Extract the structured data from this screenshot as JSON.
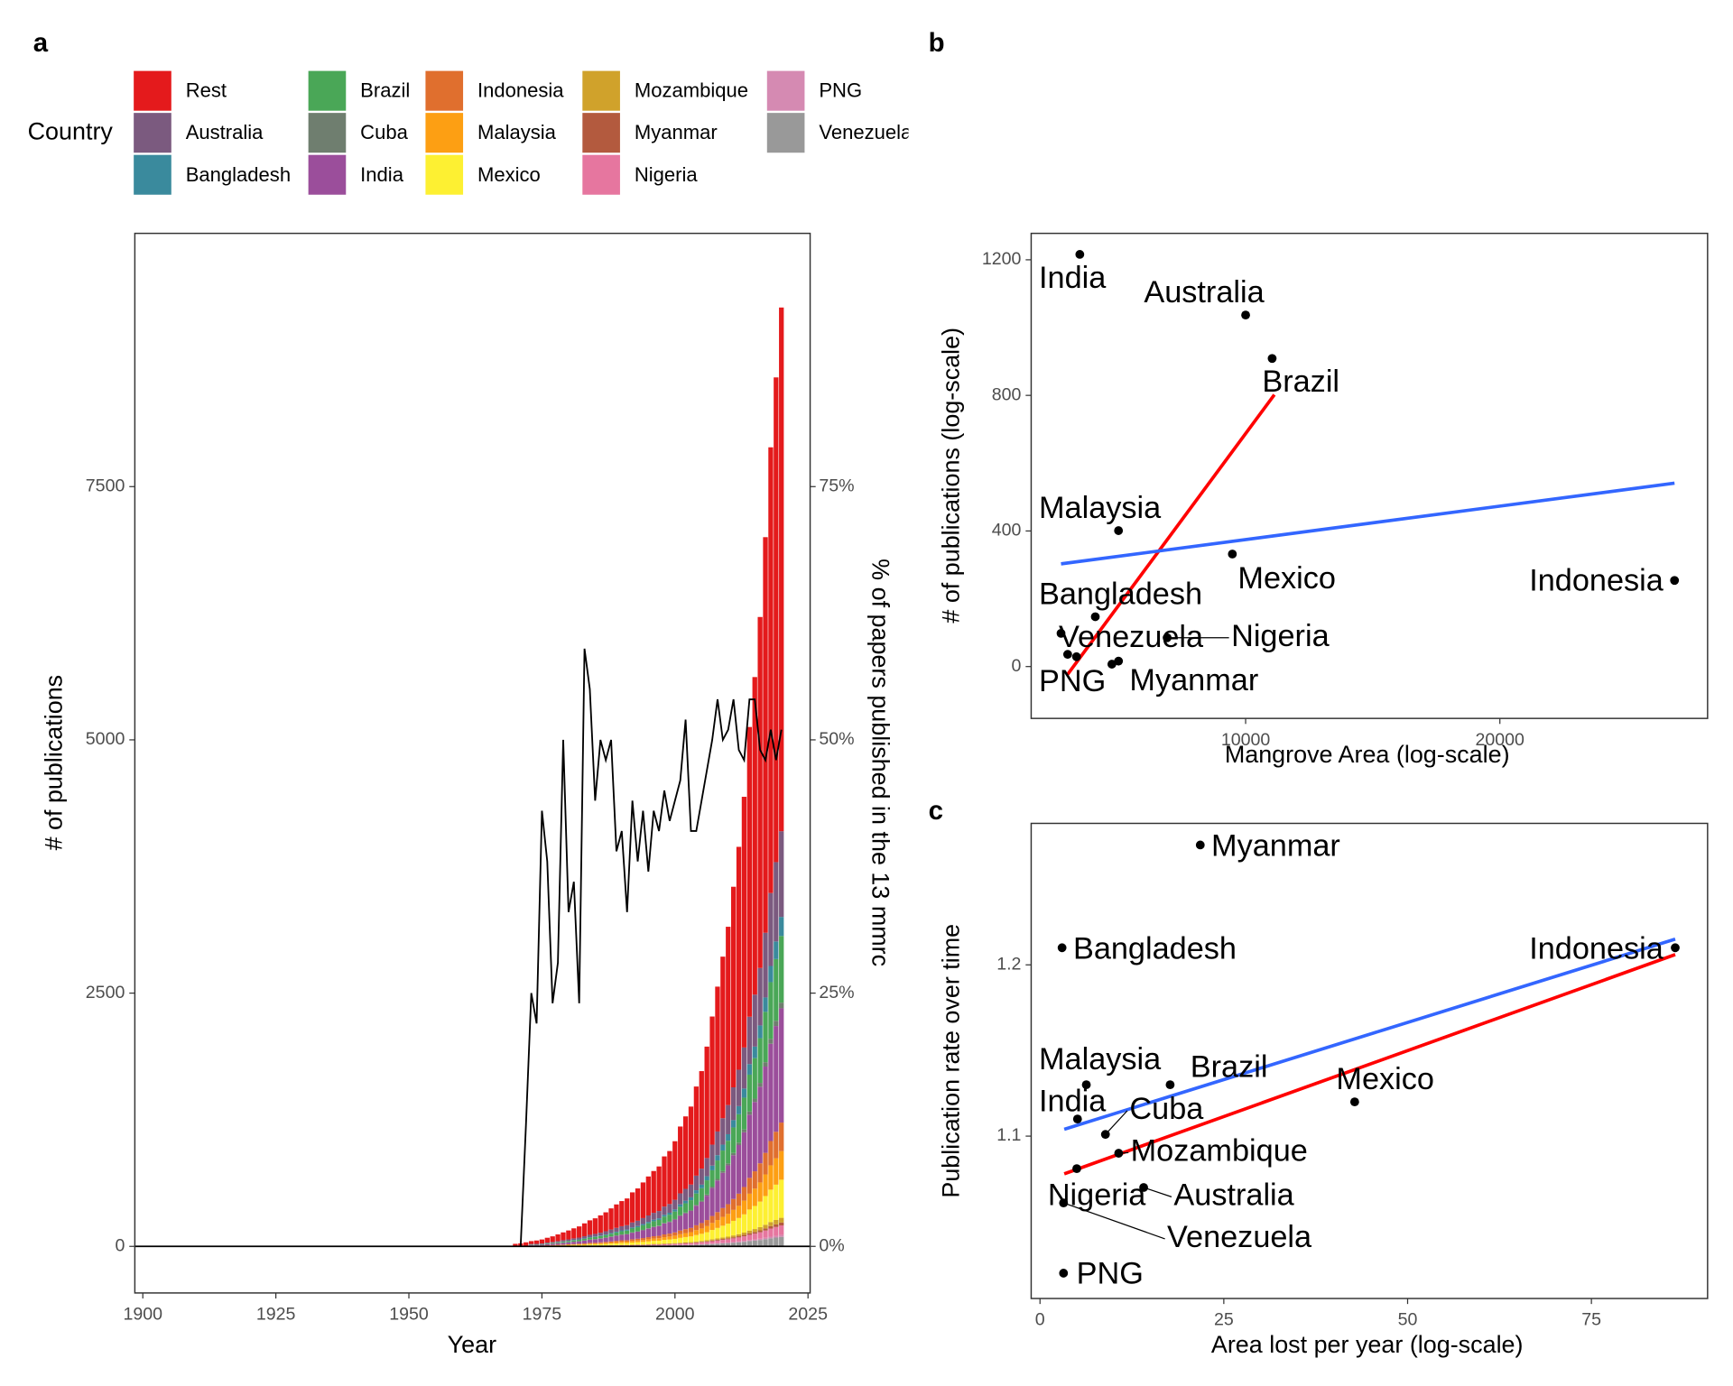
{
  "chart_data": [
    {
      "type": "bar",
      "panel": "a",
      "stacked": true,
      "legend_title": "Country",
      "x_label": "Year",
      "y_label": "# of publications",
      "y2_label": "% of papers published in the 13 mmrc",
      "xlim": [
        1898.5,
        2025.4
      ],
      "xticks": [
        1900,
        1925,
        1950,
        1975,
        2000,
        2025
      ],
      "ylim": [
        -460,
        10000
      ],
      "yticks": [
        0,
        2500,
        5000,
        7500
      ],
      "y2lim": [
        -4.6,
        100
      ],
      "y2ticks": [
        {
          "value": 0,
          "label": "0%"
        },
        {
          "value": 25,
          "label": "25%"
        },
        {
          "value": 50,
          "label": "50%"
        },
        {
          "value": 75,
          "label": "75%"
        }
      ],
      "hline": 0,
      "x": [
        1970,
        1971,
        1972,
        1973,
        1974,
        1975,
        1976,
        1977,
        1978,
        1979,
        1980,
        1981,
        1982,
        1983,
        1984,
        1985,
        1986,
        1987,
        1988,
        1989,
        1990,
        1991,
        1992,
        1993,
        1994,
        1995,
        1996,
        1997,
        1998,
        1999,
        2000,
        2001,
        2002,
        2003,
        2004,
        2005,
        2006,
        2007,
        2008,
        2009,
        2010,
        2011,
        2012,
        2013,
        2014,
        2015,
        2016,
        2017,
        2018,
        2019,
        2020
      ],
      "series": [
        {
          "name": "Rest",
          "color": "#e41a1c",
          "values": [
            25,
            30,
            40,
            28,
            33,
            39,
            47,
            55,
            66,
            77,
            88,
            99,
            110,
            127,
            143,
            154,
            171,
            187,
            209,
            231,
            248,
            264,
            297,
            319,
            352,
            385,
            413,
            440,
            495,
            523,
            578,
            660,
            715,
            770,
            880,
            963,
            1100,
            1265,
            1430,
            1595,
            1760,
            1980,
            2200,
            2475,
            2860,
            3135,
            3465,
            3905,
            4400,
            4785,
            5170
          ]
        },
        {
          "name": "Australia",
          "color": "#7b5a7f",
          "values": [
            0,
            0,
            0,
            5,
            5,
            6,
            8,
            9,
            11,
            13,
            14,
            16,
            18,
            21,
            23,
            25,
            28,
            31,
            34,
            38,
            41,
            43,
            49,
            52,
            58,
            63,
            68,
            72,
            81,
            86,
            95,
            108,
            117,
            126,
            144,
            158,
            180,
            207,
            234,
            261,
            288,
            324,
            360,
            405,
            468,
            513,
            567,
            639,
            720,
            783,
            846
          ]
        },
        {
          "name": "Bangladesh",
          "color": "#3a8a9d",
          "values": [
            0,
            0,
            0,
            1,
            1,
            1,
            2,
            2,
            2,
            3,
            3,
            4,
            4,
            5,
            5,
            6,
            6,
            7,
            8,
            8,
            9,
            10,
            11,
            12,
            13,
            14,
            15,
            16,
            18,
            19,
            21,
            24,
            26,
            28,
            32,
            35,
            40,
            46,
            52,
            58,
            64,
            72,
            80,
            90,
            104,
            114,
            126,
            142,
            160,
            174,
            188
          ]
        },
        {
          "name": "Brazil",
          "color": "#4aa757",
          "values": [
            0,
            0,
            0,
            4,
            4,
            5,
            6,
            7,
            8,
            10,
            11,
            13,
            14,
            16,
            18,
            20,
            22,
            24,
            27,
            29,
            32,
            34,
            38,
            41,
            45,
            49,
            53,
            56,
            63,
            67,
            74,
            84,
            91,
            98,
            112,
            123,
            140,
            161,
            182,
            203,
            224,
            252,
            280,
            315,
            364,
            399,
            441,
            497,
            560,
            609,
            658
          ]
        },
        {
          "name": "Cuba",
          "color": "#6f7e6f",
          "values": [
            0,
            0,
            0,
            0,
            0,
            0,
            1,
            1,
            1,
            1,
            1,
            1,
            1,
            1,
            2,
            2,
            2,
            2,
            2,
            3,
            3,
            3,
            3,
            3,
            4,
            4,
            5,
            5,
            5,
            6,
            6,
            7,
            8,
            8,
            10,
            11,
            12,
            14,
            16,
            17,
            19,
            22,
            24,
            27,
            31,
            34,
            38,
            43,
            48,
            52,
            56
          ]
        },
        {
          "name": "India",
          "color": "#9b4e9b",
          "values": [
            0,
            0,
            0,
            6,
            7,
            8,
            10,
            12,
            14,
            17,
            19,
            22,
            24,
            28,
            31,
            34,
            37,
            41,
            46,
            50,
            54,
            58,
            65,
            70,
            77,
            84,
            90,
            96,
            108,
            114,
            126,
            144,
            156,
            168,
            192,
            210,
            240,
            276,
            312,
            348,
            384,
            432,
            480,
            540,
            624,
            684,
            756,
            852,
            960,
            1044,
            1128
          ]
        },
        {
          "name": "Indonesia",
          "color": "#e06f2e",
          "values": [
            0,
            0,
            0,
            2,
            2,
            2,
            3,
            3,
            4,
            4,
            5,
            5,
            6,
            7,
            8,
            8,
            9,
            10,
            11,
            13,
            14,
            14,
            16,
            17,
            19,
            21,
            23,
            24,
            27,
            29,
            32,
            36,
            39,
            42,
            48,
            53,
            60,
            69,
            78,
            87,
            96,
            108,
            120,
            135,
            156,
            171,
            189,
            213,
            240,
            261,
            282
          ]
        },
        {
          "name": "Malaysia",
          "color": "#fd9f13",
          "values": [
            0,
            0,
            0,
            2,
            2,
            2,
            3,
            3,
            4,
            4,
            5,
            5,
            6,
            7,
            8,
            8,
            9,
            10,
            11,
            13,
            14,
            14,
            16,
            17,
            19,
            21,
            23,
            24,
            27,
            29,
            32,
            36,
            39,
            42,
            48,
            53,
            60,
            69,
            78,
            87,
            96,
            108,
            120,
            135,
            156,
            171,
            189,
            213,
            240,
            261,
            282
          ]
        },
        {
          "name": "Mexico",
          "color": "#fdf032",
          "values": [
            0,
            0,
            0,
            2,
            2,
            3,
            3,
            4,
            5,
            6,
            6,
            7,
            8,
            9,
            10,
            11,
            12,
            14,
            15,
            17,
            18,
            19,
            22,
            23,
            26,
            28,
            30,
            32,
            36,
            38,
            42,
            48,
            52,
            56,
            64,
            70,
            80,
            92,
            104,
            116,
            128,
            144,
            160,
            180,
            208,
            228,
            252,
            284,
            320,
            348,
            376
          ]
        },
        {
          "name": "Mozambique",
          "color": "#d0a22b",
          "values": [
            0,
            0,
            0,
            0,
            0,
            0,
            0,
            1,
            1,
            1,
            1,
            1,
            1,
            1,
            1,
            1,
            2,
            2,
            2,
            2,
            2,
            2,
            3,
            3,
            3,
            4,
            4,
            4,
            5,
            5,
            5,
            6,
            7,
            7,
            8,
            9,
            10,
            12,
            13,
            15,
            16,
            18,
            20,
            23,
            26,
            29,
            32,
            36,
            40,
            44,
            47
          ]
        },
        {
          "name": "Myanmar",
          "color": "#b35a3e",
          "values": [
            0,
            0,
            0,
            0,
            0,
            0,
            0,
            0,
            0,
            0,
            0,
            1,
            1,
            1,
            1,
            1,
            1,
            1,
            1,
            1,
            1,
            1,
            2,
            2,
            2,
            2,
            2,
            2,
            3,
            3,
            3,
            4,
            4,
            4,
            5,
            5,
            6,
            7,
            8,
            9,
            10,
            11,
            12,
            14,
            16,
            17,
            19,
            21,
            24,
            26,
            28
          ]
        },
        {
          "name": "Nigeria",
          "color": "#e6769f",
          "values": [
            0,
            0,
            0,
            1,
            1,
            1,
            1,
            1,
            1,
            1,
            2,
            2,
            2,
            2,
            3,
            3,
            3,
            3,
            4,
            4,
            5,
            5,
            5,
            6,
            6,
            7,
            8,
            8,
            9,
            10,
            11,
            12,
            13,
            14,
            16,
            18,
            20,
            23,
            26,
            29,
            32,
            36,
            40,
            45,
            52,
            57,
            63,
            71,
            80,
            87,
            94
          ]
        },
        {
          "name": "PNG",
          "color": "#d58ab2",
          "values": [
            0,
            0,
            0,
            0,
            0,
            0,
            0,
            0,
            0,
            0,
            0,
            0,
            0,
            0,
            1,
            1,
            1,
            1,
            1,
            1,
            1,
            1,
            1,
            1,
            1,
            1,
            2,
            2,
            2,
            2,
            2,
            2,
            3,
            3,
            3,
            4,
            4,
            5,
            5,
            6,
            6,
            7,
            8,
            9,
            10,
            11,
            13,
            14,
            16,
            17,
            19
          ]
        },
        {
          "name": "Venezuela",
          "color": "#999999",
          "values": [
            0,
            0,
            0,
            1,
            1,
            1,
            1,
            1,
            1,
            1,
            2,
            2,
            2,
            2,
            3,
            3,
            3,
            3,
            4,
            4,
            5,
            5,
            5,
            6,
            6,
            7,
            8,
            8,
            9,
            10,
            11,
            12,
            13,
            14,
            16,
            18,
            20,
            23,
            26,
            29,
            32,
            36,
            40,
            45,
            52,
            57,
            63,
            71,
            80,
            87,
            94
          ]
        }
      ],
      "line": {
        "axis": "y2",
        "color": "#000000",
        "x": [
          1971,
          1972,
          1973,
          1974,
          1975,
          1976,
          1977,
          1978,
          1979,
          1980,
          1981,
          1982,
          1983,
          1984,
          1985,
          1986,
          1987,
          1988,
          1989,
          1990,
          1991,
          1992,
          1993,
          1994,
          1995,
          1996,
          1997,
          1998,
          1999,
          2000,
          2001,
          2002,
          2003,
          2004,
          2005,
          2006,
          2007,
          2008,
          2009,
          2010,
          2011,
          2012,
          2013,
          2014,
          2015,
          2016,
          2017,
          2018,
          2019,
          2020
        ],
        "values": [
          0,
          12,
          25,
          22,
          43,
          38,
          24,
          28,
          50,
          33,
          36,
          24,
          59,
          55,
          44,
          50,
          48,
          50,
          39,
          41,
          33,
          44,
          38,
          43,
          37,
          43,
          41,
          45,
          42,
          44,
          46,
          52,
          41,
          41,
          44,
          47,
          50,
          54,
          50,
          51,
          54,
          49,
          48,
          54,
          54,
          49,
          48,
          51,
          48,
          51
        ]
      }
    },
    {
      "type": "scatter",
      "panel": "b",
      "x_label": "Mangrove Area (log-scale)",
      "y_label": "# of publications (log-scale)",
      "xlim": [
        1565,
        28170
      ],
      "xticks": [
        10000,
        20000
      ],
      "ylim": [
        -153,
        1278
      ],
      "yticks": [
        0,
        400,
        800,
        1200
      ],
      "labels": [
        "India",
        "Australia",
        "Brazil",
        "Malaysia",
        "Mexico",
        "Indonesia",
        "Bangladesh",
        "Nigeria",
        "Venezuela",
        "PNG",
        "Myanmar",
        null,
        null
      ],
      "x": [
        3478,
        10000,
        11043,
        5000,
        9478,
        26870,
        4087,
        6913,
        2739,
        3000,
        4739,
        3348,
        5000
      ],
      "values": [
        1216,
        1037,
        909,
        401,
        332,
        254,
        147,
        85,
        98,
        36,
        7,
        29,
        16
      ],
      "point_color": "#000000",
      "fits": [
        {
          "color": "#ff0000",
          "x": [
            3000,
            11130
          ],
          "values": [
            -23,
            802
          ]
        },
        {
          "color": "#3366ff",
          "x": [
            2739,
            26870
          ],
          "values": [
            303,
            541
          ]
        }
      ]
    },
    {
      "type": "scatter",
      "panel": "c",
      "x_label": "Area lost per year (log-scale)",
      "y_label": "Publication rate over time",
      "xlim": [
        -1.2,
        90.8
      ],
      "xticks": [
        0,
        25,
        50,
        75
      ],
      "ylim": [
        1.0052,
        1.2826
      ],
      "yticks": [
        1.1,
        1.2
      ],
      "labels": [
        "Myanmar",
        "Bangladesh",
        "Indonesia",
        "Malaysia",
        "Brazil",
        "Mexico",
        "India",
        "Cuba",
        "Mozambique",
        "Nigeria",
        "Australia",
        "Venezuela",
        "PNG"
      ],
      "x": [
        21.8,
        3.0,
        86.4,
        6.3,
        17.7,
        42.8,
        5.1,
        8.9,
        10.7,
        5.0,
        14.1,
        3.2,
        3.2
      ],
      "values": [
        1.27,
        1.21,
        1.21,
        1.13,
        1.13,
        1.12,
        1.11,
        1.101,
        1.09,
        1.081,
        1.07,
        1.061,
        1.02
      ],
      "point_color": "#000000",
      "fits": [
        {
          "color": "#ff0000",
          "x": [
            3.3,
            86.4
          ],
          "values": [
            1.078,
            1.206
          ]
        },
        {
          "color": "#3366ff",
          "x": [
            3.3,
            86.4
          ],
          "values": [
            1.104,
            1.215
          ]
        }
      ]
    }
  ]
}
